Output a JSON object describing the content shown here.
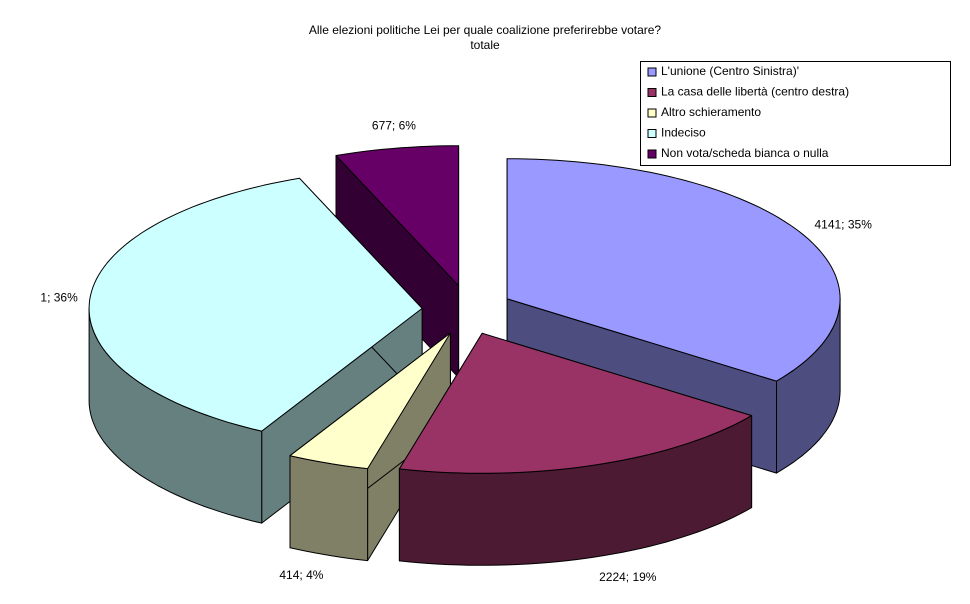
{
  "chart_data": {
    "type": "pie3d",
    "title": "Alle elezioni politiche Lei per quale coalizione preferirebbe votare?",
    "subtitle": "totale",
    "categories": [
      "L'unione (Centro Sinistra)'",
      "La casa delle libertà (centro destra)",
      "Altro schieramento",
      "Indeciso",
      "Non vota/scheda bianca o nulla"
    ],
    "values": [
      35,
      19,
      4,
      36,
      6
    ],
    "value_labels": [
      "4141; 35%",
      "2224; 19%",
      "414; 4%",
      "1; 36%",
      "677; 6%"
    ],
    "colors": [
      "#9999ff",
      "#993366",
      "#ffffcc",
      "#ccffff",
      "#660066"
    ],
    "legend": "top-right"
  }
}
